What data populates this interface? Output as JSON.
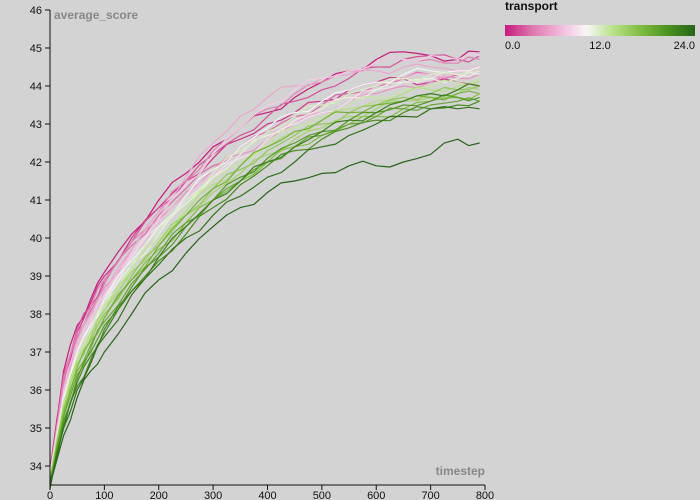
{
  "chart_data": {
    "type": "line",
    "title": "",
    "xlabel": "timestep",
    "ylabel": "average_score",
    "xlim": [
      0,
      800
    ],
    "ylim": [
      33.5,
      46
    ],
    "x_ticks": [
      "0",
      "100",
      "200",
      "300",
      "400",
      "500",
      "600",
      "700",
      "800"
    ],
    "y_ticks": [
      "34",
      "35",
      "36",
      "37",
      "38",
      "39",
      "40",
      "41",
      "42",
      "43",
      "44",
      "45",
      "46"
    ],
    "grid": false,
    "color_scale": {
      "title": "transport",
      "min": 0,
      "max": 24,
      "tick_labels": [
        "0.0",
        "12.0",
        "24.0"
      ],
      "colors": [
        "#c51b7d",
        "#de77ae",
        "#f1b6da",
        "#f7f7f7",
        "#b8e186",
        "#7fbc41",
        "#4d9221",
        "#276419"
      ],
      "placement": "top-right"
    },
    "x": [
      0,
      25,
      50,
      75,
      100,
      150,
      200,
      250,
      300,
      350,
      400,
      450,
      500,
      550,
      600,
      650,
      700,
      750,
      790
    ],
    "series": [
      {
        "transport": 0,
        "values": [
          33.8,
          36.5,
          37.7,
          38.4,
          39.1,
          40.1,
          41.0,
          41.7,
          42.4,
          42.9,
          43.3,
          43.7,
          44.1,
          44.4,
          44.7,
          44.9,
          44.8,
          44.7,
          44.9
        ]
      },
      {
        "transport": 1,
        "values": [
          33.9,
          36.3,
          37.5,
          38.3,
          39.0,
          40.0,
          40.8,
          41.5,
          42.1,
          42.6,
          43.0,
          43.3,
          43.6,
          43.9,
          44.1,
          44.2,
          44.1,
          44.1,
          44.0
        ]
      },
      {
        "transport": 2,
        "values": [
          33.7,
          36.4,
          37.6,
          38.2,
          38.9,
          39.9,
          40.8,
          41.5,
          42.2,
          42.7,
          43.2,
          43.6,
          43.9,
          44.2,
          44.5,
          44.7,
          44.8,
          44.7,
          44.8
        ]
      },
      {
        "transport": 3,
        "values": [
          33.8,
          36.2,
          37.4,
          38.1,
          38.8,
          39.8,
          40.6,
          41.3,
          41.9,
          42.4,
          42.8,
          43.2,
          43.5,
          43.8,
          44.0,
          44.2,
          44.3,
          44.3,
          44.4
        ]
      },
      {
        "transport": 4,
        "values": [
          33.6,
          36.3,
          37.5,
          38.2,
          38.9,
          39.9,
          40.7,
          41.5,
          42.3,
          42.9,
          43.4,
          43.8,
          44.1,
          44.4,
          44.6,
          44.7,
          44.7,
          44.6,
          44.7
        ]
      },
      {
        "transport": 5,
        "values": [
          33.8,
          36.1,
          37.3,
          38.0,
          38.7,
          39.7,
          40.5,
          41.2,
          41.8,
          42.2,
          42.6,
          43.0,
          43.3,
          43.6,
          43.8,
          44.0,
          44.1,
          44.2,
          44.3
        ]
      },
      {
        "transport": 6,
        "values": [
          33.7,
          36.0,
          37.3,
          38.0,
          38.6,
          39.7,
          40.7,
          41.6,
          42.5,
          43.2,
          43.7,
          44.0,
          44.2,
          44.3,
          44.4,
          44.5,
          44.5,
          44.4,
          44.5
        ]
      },
      {
        "transport": 7,
        "values": [
          33.8,
          36.0,
          37.2,
          37.9,
          38.5,
          39.6,
          40.4,
          41.1,
          41.7,
          42.2,
          42.7,
          43.1,
          43.4,
          43.7,
          44.0,
          44.2,
          44.3,
          44.4,
          44.5
        ]
      },
      {
        "transport": 8,
        "values": [
          33.7,
          35.9,
          37.1,
          37.8,
          38.5,
          39.6,
          40.5,
          41.4,
          42.2,
          42.9,
          43.5,
          43.9,
          44.2,
          44.4,
          44.6,
          44.7,
          44.8,
          44.7,
          44.8
        ]
      },
      {
        "transport": 9,
        "values": [
          33.8,
          35.8,
          37.0,
          37.7,
          38.4,
          39.5,
          40.3,
          41.0,
          41.6,
          42.1,
          42.6,
          43.0,
          43.3,
          43.6,
          43.9,
          44.1,
          44.2,
          44.3,
          44.4
        ]
      },
      {
        "transport": 10,
        "values": [
          33.6,
          35.8,
          37.0,
          37.7,
          38.4,
          39.4,
          40.3,
          41.1,
          41.8,
          42.4,
          42.9,
          43.3,
          43.6,
          43.9,
          44.1,
          44.3,
          44.4,
          44.4,
          44.5
        ]
      },
      {
        "transport": 11,
        "values": [
          33.7,
          35.7,
          36.9,
          37.6,
          38.3,
          39.3,
          40.1,
          40.9,
          41.6,
          42.2,
          42.7,
          43.1,
          43.4,
          43.7,
          43.9,
          44.1,
          44.2,
          44.2,
          44.3
        ]
      },
      {
        "transport": 12,
        "values": [
          33.7,
          35.7,
          36.9,
          37.6,
          38.3,
          39.3,
          40.2,
          41.0,
          41.7,
          42.3,
          42.8,
          43.2,
          43.5,
          43.8,
          44.0,
          44.2,
          44.3,
          44.3,
          44.4
        ]
      },
      {
        "transport": 13,
        "values": [
          33.6,
          35.6,
          36.8,
          37.5,
          38.2,
          39.2,
          40.0,
          40.8,
          41.5,
          42.0,
          42.5,
          42.9,
          43.2,
          43.5,
          43.7,
          43.9,
          44.0,
          44.1,
          44.2
        ]
      },
      {
        "transport": 14,
        "values": [
          33.7,
          35.6,
          36.8,
          37.5,
          38.1,
          39.1,
          39.9,
          40.7,
          41.4,
          41.9,
          42.4,
          42.8,
          43.1,
          43.4,
          43.6,
          43.8,
          43.9,
          44.0,
          44.1
        ]
      },
      {
        "transport": 15,
        "values": [
          33.6,
          35.5,
          36.7,
          37.4,
          38.1,
          39.1,
          39.9,
          40.6,
          41.2,
          41.7,
          42.2,
          42.6,
          42.9,
          43.2,
          43.4,
          43.6,
          43.7,
          43.8,
          43.9
        ]
      },
      {
        "transport": 16,
        "values": [
          33.6,
          35.5,
          36.6,
          37.3,
          38.0,
          39.0,
          39.8,
          40.6,
          41.3,
          41.8,
          42.3,
          42.7,
          43.0,
          43.3,
          43.5,
          43.7,
          43.8,
          43.9,
          44.0
        ]
      },
      {
        "transport": 17,
        "values": [
          33.5,
          35.4,
          36.6,
          37.3,
          37.9,
          38.9,
          39.7,
          40.4,
          41.0,
          41.5,
          42.0,
          42.4,
          42.7,
          43.0,
          43.2,
          43.4,
          43.6,
          43.7,
          43.8
        ]
      },
      {
        "transport": 18,
        "values": [
          33.6,
          35.3,
          36.5,
          37.2,
          37.9,
          38.9,
          39.8,
          40.6,
          41.3,
          41.9,
          42.4,
          42.8,
          43.1,
          43.3,
          43.5,
          43.6,
          43.7,
          43.8,
          43.8
        ]
      },
      {
        "transport": 19,
        "values": [
          33.5,
          35.3,
          36.4,
          37.1,
          37.8,
          38.8,
          39.6,
          40.4,
          41.0,
          41.5,
          42.0,
          42.4,
          42.7,
          43.0,
          43.2,
          43.4,
          43.5,
          43.6,
          43.6
        ]
      },
      {
        "transport": 20,
        "values": [
          33.5,
          35.2,
          36.3,
          37.0,
          37.7,
          38.7,
          39.5,
          40.3,
          41.0,
          41.6,
          42.1,
          42.5,
          42.8,
          43.1,
          43.3,
          43.5,
          43.6,
          43.7,
          43.7
        ]
      },
      {
        "transport": 21,
        "values": [
          33.5,
          35.1,
          36.2,
          36.9,
          37.6,
          38.6,
          39.4,
          40.1,
          40.8,
          41.4,
          41.9,
          42.3,
          42.6,
          42.9,
          43.1,
          43.3,
          43.4,
          43.5,
          43.6
        ]
      },
      {
        "transport": 22,
        "values": [
          33.6,
          35.0,
          36.1,
          36.8,
          37.5,
          38.6,
          39.5,
          40.3,
          41.0,
          41.5,
          42.0,
          42.4,
          42.8,
          43.1,
          43.3,
          43.6,
          43.8,
          43.9,
          44.0
        ]
      },
      {
        "transport": 23,
        "values": [
          33.4,
          35.0,
          36.0,
          36.7,
          37.4,
          38.5,
          39.3,
          40.0,
          40.6,
          41.1,
          41.6,
          42.0,
          42.4,
          42.7,
          43.0,
          43.2,
          43.4,
          43.4,
          43.4
        ]
      },
      {
        "transport": 24,
        "values": [
          33.5,
          34.8,
          35.8,
          36.5,
          37.0,
          38.0,
          38.9,
          39.6,
          40.3,
          40.8,
          41.2,
          41.5,
          41.7,
          41.9,
          41.9,
          42.0,
          42.2,
          42.6,
          42.5
        ]
      }
    ]
  }
}
